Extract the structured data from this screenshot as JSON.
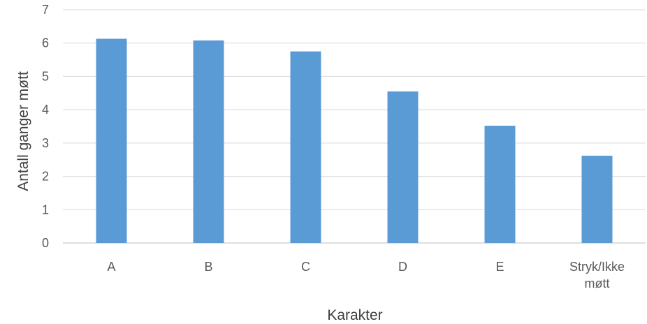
{
  "chart_data": {
    "type": "bar",
    "categories": [
      [
        "A"
      ],
      [
        "B"
      ],
      [
        "C"
      ],
      [
        "D"
      ],
      [
        "E"
      ],
      [
        "Stryk/Ikke",
        "møtt"
      ]
    ],
    "values": [
      6.13,
      6.08,
      5.75,
      4.55,
      3.52,
      2.62
    ],
    "xlabel": "Karakter",
    "ylabel": "Antall ganger møtt",
    "ylim": [
      0,
      7
    ],
    "yticks": [
      0,
      1,
      2,
      3,
      4,
      5,
      6,
      7
    ],
    "grid": true,
    "legend": "none",
    "bar_color": "#5b9bd5"
  }
}
